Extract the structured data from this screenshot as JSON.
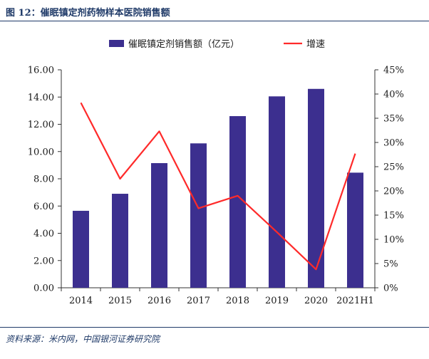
{
  "figure": {
    "title": "图 12：催眠镇定剂药物样本医院销售额",
    "source": "资料来源：米内网，中国银河证券研究院"
  },
  "colors": {
    "bar": "#3c2f8f",
    "line": "#ff2a2a",
    "axis": "#333333",
    "text": "#1a1a1a"
  },
  "chart_data": {
    "type": "bar",
    "categories": [
      "2014",
      "2015",
      "2016",
      "2017",
      "2018",
      "2019",
      "2020",
      "2021H1"
    ],
    "series": [
      {
        "name": "催眠镇定剂销售额（亿元）",
        "type": "bar",
        "axis": "left",
        "values": [
          5.65,
          6.9,
          9.15,
          10.6,
          12.6,
          14.05,
          14.6,
          8.45
        ]
      },
      {
        "name": "增速",
        "type": "line",
        "axis": "right",
        "unit": "%",
        "values": [
          38.2,
          22.5,
          32.3,
          16.4,
          19.0,
          11.5,
          3.8,
          27.7
        ]
      }
    ],
    "ylim": [
      0,
      16
    ],
    "yticks": [
      "0.00",
      "2.00",
      "4.00",
      "6.00",
      "8.00",
      "10.00",
      "12.00",
      "14.00",
      "16.00"
    ],
    "y2lim": [
      0,
      45
    ],
    "y2ticks": [
      "0%",
      "5%",
      "10%",
      "15%",
      "20%",
      "25%",
      "30%",
      "35%",
      "40%",
      "45%"
    ],
    "legend_position": "top",
    "grid": false
  }
}
